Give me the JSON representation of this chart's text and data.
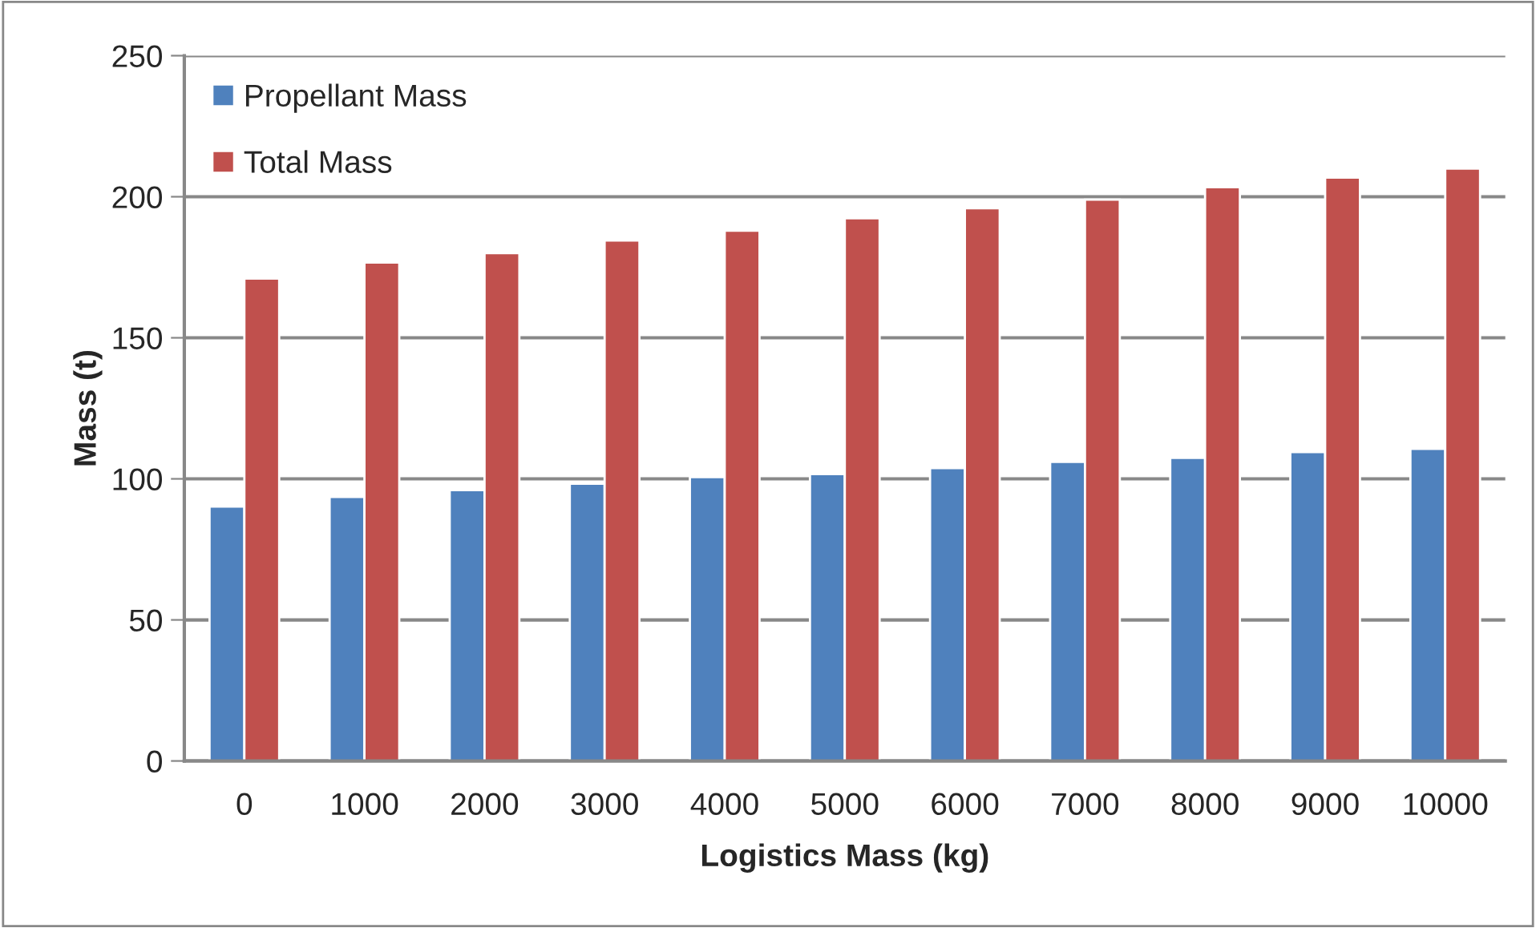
{
  "chart_data": {
    "type": "bar",
    "xlabel": "Logistics Mass (kg)",
    "ylabel": "Mass (t)",
    "categories": [
      "0",
      "1000",
      "2000",
      "3000",
      "4000",
      "5000",
      "6000",
      "7000",
      "8000",
      "9000",
      "10000"
    ],
    "series": [
      {
        "name": "Propellant Mass",
        "color": "#4f81bd",
        "values": [
          90.2,
          93.6,
          96,
          98.3,
          100.6,
          101.7,
          103.8,
          106,
          107.4,
          109.5,
          110.6
        ]
      },
      {
        "name": "Total Mass",
        "color": "#c0504d",
        "values": [
          171,
          176.7,
          180,
          184.5,
          188,
          192.4,
          195.9,
          199,
          203.4,
          206.8,
          210
        ]
      }
    ],
    "ylim": [
      0,
      250
    ],
    "yticks": [
      0,
      50,
      100,
      150,
      200,
      250
    ],
    "grid": "y",
    "legend": "top left"
  }
}
